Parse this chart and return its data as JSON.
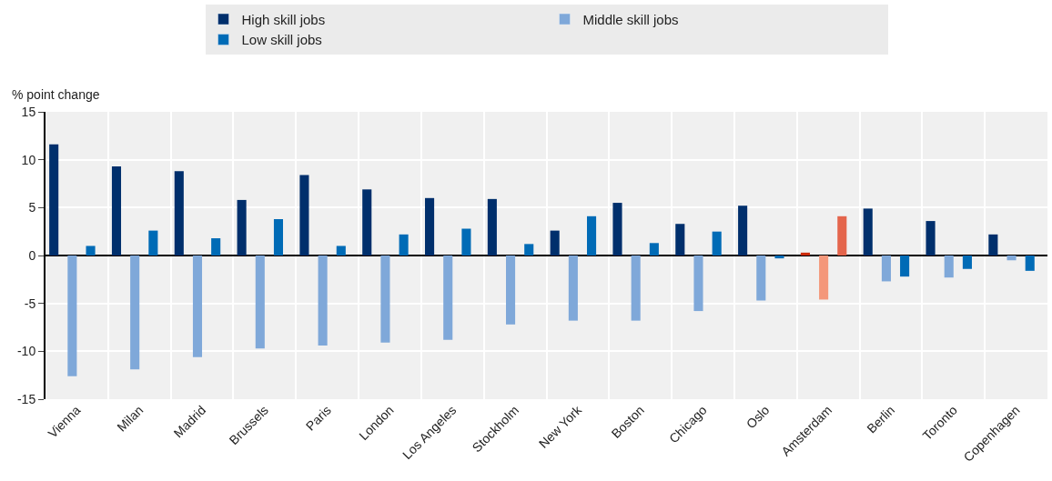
{
  "chart_data": {
    "type": "bar",
    "ylabel": "% point change",
    "categories": [
      "Vienna",
      "Milan",
      "Madrid",
      "Brussels",
      "Paris",
      "London",
      "Los Angeles",
      "Stockholm",
      "New York",
      "Boston",
      "Chicago",
      "Oslo",
      "Amsterdam",
      "Berlin",
      "Toronto",
      "Copenhagen"
    ],
    "series": [
      {
        "name": "High skill jobs",
        "color": "#002f6c",
        "colors": [
          "#002f6c",
          "#002f6c",
          "#002f6c",
          "#002f6c",
          "#002f6c",
          "#002f6c",
          "#002f6c",
          "#002f6c",
          "#002f6c",
          "#002f6c",
          "#002f6c",
          "#002f6c",
          "#cc2a0a",
          "#002f6c",
          "#002f6c",
          "#002f6c"
        ],
        "values": [
          11.6,
          9.3,
          8.8,
          5.8,
          8.4,
          6.9,
          6.0,
          5.9,
          2.6,
          5.5,
          3.3,
          5.2,
          0.3,
          4.9,
          3.6,
          2.2
        ]
      },
      {
        "name": "Middle skill jobs",
        "color": "#7fa8d9",
        "colors": [
          "#7fa8d9",
          "#7fa8d9",
          "#7fa8d9",
          "#7fa8d9",
          "#7fa8d9",
          "#7fa8d9",
          "#7fa8d9",
          "#7fa8d9",
          "#7fa8d9",
          "#7fa8d9",
          "#7fa8d9",
          "#7fa8d9",
          "#f4977a",
          "#7fa8d9",
          "#7fa8d9",
          "#7fa8d9"
        ],
        "values": [
          -12.6,
          -11.9,
          -10.6,
          -9.7,
          -9.4,
          -9.1,
          -8.8,
          -7.2,
          -6.8,
          -6.8,
          -5.8,
          -4.7,
          -4.6,
          -2.7,
          -2.3,
          -0.5
        ]
      },
      {
        "name": "Low skill jobs",
        "color": "#006bb6",
        "colors": [
          "#006bb6",
          "#006bb6",
          "#006bb6",
          "#006bb6",
          "#006bb6",
          "#006bb6",
          "#006bb6",
          "#006bb6",
          "#006bb6",
          "#006bb6",
          "#006bb6",
          "#006bb6",
          "#e4654c",
          "#006bb6",
          "#006bb6",
          "#006bb6"
        ],
        "values": [
          1.0,
          2.6,
          1.8,
          3.8,
          1.0,
          2.2,
          2.8,
          1.2,
          4.1,
          1.3,
          2.5,
          -0.3,
          4.1,
          -2.2,
          -1.4,
          -1.6
        ]
      }
    ],
    "ylim": [
      -15,
      15
    ],
    "yticks": [
      -15,
      -10,
      -5,
      0,
      5,
      10,
      15
    ],
    "grid": true,
    "legend": "top"
  }
}
